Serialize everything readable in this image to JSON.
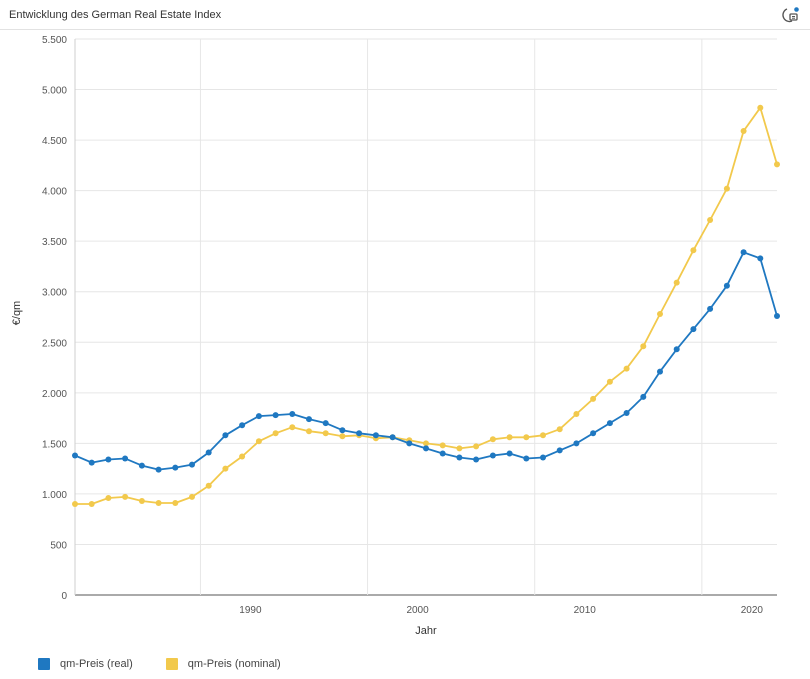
{
  "header": {
    "title": "Entwicklung des German Real Estate Index",
    "menu_icon": "chart-menu-icon"
  },
  "chart_data": {
    "type": "line",
    "xlabel": "Jahr",
    "ylabel": "€/qm",
    "xlim": [
      1981,
      2023
    ],
    "ylim": [
      0,
      5500
    ],
    "yticks": [
      0,
      500,
      1000,
      1500,
      2000,
      2500,
      3000,
      3500,
      4000,
      4500,
      5000,
      5500
    ],
    "ytick_labels": [
      "0",
      "500",
      "1.000",
      "1.500",
      "2.000",
      "2.500",
      "3.000",
      "3.500",
      "4.000",
      "4.500",
      "5.000",
      "5.500"
    ],
    "xticks": [
      1990,
      2000,
      2010,
      2020
    ],
    "xtick_labels": [
      "1990",
      "2000",
      "2010",
      "2020"
    ],
    "grid": true,
    "legend_position": "bottom-left",
    "x": [
      1981,
      1982,
      1983,
      1984,
      1985,
      1986,
      1987,
      1988,
      1989,
      1990,
      1991,
      1992,
      1993,
      1994,
      1995,
      1996,
      1997,
      1998,
      1999,
      2000,
      2001,
      2002,
      2003,
      2004,
      2005,
      2006,
      2007,
      2008,
      2009,
      2010,
      2011,
      2012,
      2013,
      2014,
      2015,
      2016,
      2017,
      2018,
      2019,
      2020,
      2021,
      2022,
      2023
    ],
    "series": [
      {
        "name": "qm-Preis (real)",
        "color": "#1f78c1",
        "values": [
          1380,
          1310,
          1340,
          1350,
          1280,
          1240,
          1260,
          1290,
          1410,
          1580,
          1680,
          1770,
          1780,
          1790,
          1740,
          1700,
          1630,
          1600,
          1580,
          1560,
          1500,
          1450,
          1400,
          1360,
          1340,
          1380,
          1400,
          1350,
          1360,
          1430,
          1500,
          1600,
          1700,
          1800,
          1960,
          2210,
          2430,
          2630,
          2830,
          3060,
          3390,
          3330,
          2760
        ]
      },
      {
        "name": "qm-Preis (nominal)",
        "color": "#f2c94c",
        "values": [
          900,
          900,
          960,
          970,
          930,
          910,
          910,
          970,
          1080,
          1250,
          1370,
          1520,
          1600,
          1660,
          1620,
          1600,
          1570,
          1580,
          1550,
          1560,
          1530,
          1500,
          1480,
          1450,
          1470,
          1540,
          1560,
          1560,
          1580,
          1640,
          1790,
          1940,
          2110,
          2240,
          2460,
          2780,
          3090,
          3410,
          3710,
          4020,
          4590,
          4820,
          4260
        ]
      }
    ]
  }
}
